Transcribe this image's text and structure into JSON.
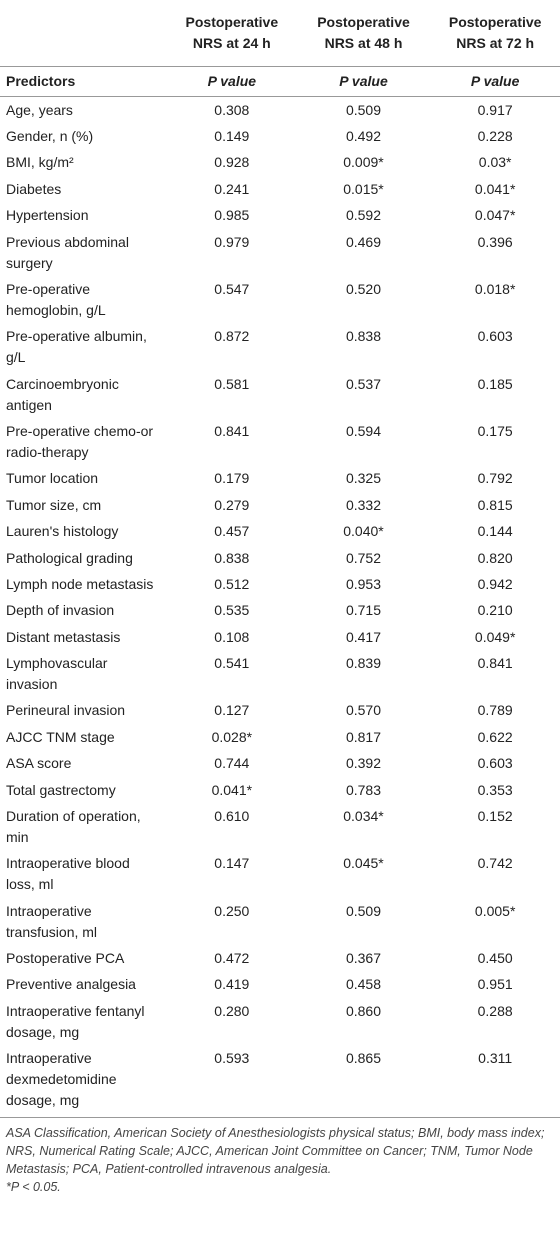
{
  "table": {
    "columns": [
      "Postoperative NRS at 24 h",
      "Postoperative NRS at 48 h",
      "Postoperative NRS at 72 h"
    ],
    "subheader": [
      "Predictors",
      "P value",
      "P value",
      "P value"
    ],
    "rows": [
      [
        "Age, years",
        "0.308",
        "0.509",
        "0.917"
      ],
      [
        "Gender, n (%)",
        "0.149",
        "0.492",
        "0.228"
      ],
      [
        "BMI, kg/m²",
        "0.928",
        "0.009*",
        "0.03*"
      ],
      [
        "Diabetes",
        "0.241",
        "0.015*",
        "0.041*"
      ],
      [
        "Hypertension",
        "0.985",
        "0.592",
        "0.047*"
      ],
      [
        "Previous abdominal surgery",
        "0.979",
        "0.469",
        "0.396"
      ],
      [
        "Pre-operative hemoglobin, g/L",
        "0.547",
        "0.520",
        "0.018*"
      ],
      [
        "Pre-operative albumin, g/L",
        "0.872",
        "0.838",
        "0.603"
      ],
      [
        "Carcinoembryonic antigen",
        "0.581",
        "0.537",
        "0.185"
      ],
      [
        "Pre-operative chemo-or radio-therapy",
        "0.841",
        "0.594",
        "0.175"
      ],
      [
        "Tumor location",
        "0.179",
        "0.325",
        "0.792"
      ],
      [
        "Tumor size, cm",
        "0.279",
        "0.332",
        "0.815"
      ],
      [
        "Lauren's histology",
        "0.457",
        "0.040*",
        "0.144"
      ],
      [
        "Pathological grading",
        "0.838",
        "0.752",
        "0.820"
      ],
      [
        "Lymph node metastasis",
        "0.512",
        "0.953",
        "0.942"
      ],
      [
        "Depth of invasion",
        "0.535",
        "0.715",
        "0.210"
      ],
      [
        "Distant metastasis",
        "0.108",
        "0.417",
        "0.049*"
      ],
      [
        "Lymphovascular invasion",
        "0.541",
        "0.839",
        "0.841"
      ],
      [
        "Perineural invasion",
        "0.127",
        "0.570",
        "0.789"
      ],
      [
        "AJCC TNM stage",
        "0.028*",
        "0.817",
        "0.622"
      ],
      [
        "ASA score",
        "0.744",
        "0.392",
        "0.603"
      ],
      [
        "Total gastrectomy",
        "0.041*",
        "0.783",
        "0.353"
      ],
      [
        "Duration of operation, min",
        "0.610",
        "0.034*",
        "0.152"
      ],
      [
        "Intraoperative blood loss, ml",
        "0.147",
        "0.045*",
        "0.742"
      ],
      [
        "Intraoperative transfusion, ml",
        "0.250",
        "0.509",
        "0.005*"
      ],
      [
        "Postoperative PCA",
        "0.472",
        "0.367",
        "0.450"
      ],
      [
        "Preventive analgesia",
        "0.419",
        "0.458",
        "0.951"
      ],
      [
        "Intraoperative fentanyl dosage, mg",
        "0.280",
        "0.860",
        "0.288"
      ],
      [
        "Intraoperative dexmedetomidine dosage, mg",
        "0.593",
        "0.865",
        "0.311"
      ]
    ]
  },
  "footnote": {
    "text": "ASA Classification, American Society of Anesthesiologists physical status; BMI, body mass index; NRS, Numerical Rating Scale; AJCC, American Joint Committee on Cancer; TNM, Tumor Node Metastasis; PCA, Patient-controlled intravenous analgesia.",
    "significance": "*P < 0.05."
  }
}
